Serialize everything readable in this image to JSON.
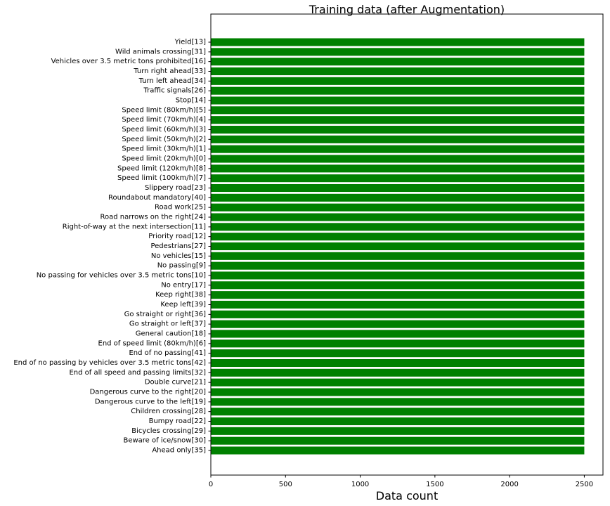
{
  "chart_data": {
    "type": "bar",
    "orientation": "horizontal",
    "title": "Training data (after Augmentation)",
    "xlabel": "Data count",
    "ylabel": "",
    "xlim": [
      0,
      2625
    ],
    "xticks": [
      0,
      500,
      1000,
      1500,
      2000,
      2500
    ],
    "grid": false,
    "legend": "none",
    "bar_color": "#008000",
    "categories": [
      "Ahead only[35]",
      "Beware of ice/snow[30]",
      "Bicycles crossing[29]",
      "Bumpy road[22]",
      "Children crossing[28]",
      "Dangerous curve to the left[19]",
      "Dangerous curve to the right[20]",
      "Double curve[21]",
      "End of all speed and passing limits[32]",
      "End of no passing by vehicles over 3.5 metric tons[42]",
      "End of no passing[41]",
      "End of speed limit (80km/h)[6]",
      "General caution[18]",
      "Go straight or left[37]",
      "Go straight or right[36]",
      "Keep left[39]",
      "Keep right[38]",
      "No entry[17]",
      "No passing for vehicles over 3.5 metric tons[10]",
      "No passing[9]",
      "No vehicles[15]",
      "Pedestrians[27]",
      "Priority road[12]",
      "Right-of-way at the next intersection[11]",
      "Road narrows on the right[24]",
      "Road work[25]",
      "Roundabout mandatory[40]",
      "Slippery road[23]",
      "Speed limit (100km/h)[7]",
      "Speed limit (120km/h)[8]",
      "Speed limit (20km/h)[0]",
      "Speed limit (30km/h)[1]",
      "Speed limit (50km/h)[2]",
      "Speed limit (60km/h)[3]",
      "Speed limit (70km/h)[4]",
      "Speed limit (80km/h)[5]",
      "Stop[14]",
      "Traffic signals[26]",
      "Turn left ahead[34]",
      "Turn right ahead[33]",
      "Vehicles over 3.5 metric tons prohibited[16]",
      "Wild animals crossing[31]",
      "Yield[13]"
    ],
    "values": [
      2500,
      2500,
      2500,
      2500,
      2500,
      2500,
      2500,
      2500,
      2500,
      2500,
      2500,
      2500,
      2500,
      2500,
      2500,
      2500,
      2500,
      2500,
      2500,
      2500,
      2500,
      2500,
      2500,
      2500,
      2500,
      2500,
      2500,
      2500,
      2500,
      2500,
      2500,
      2500,
      2500,
      2500,
      2500,
      2500,
      2500,
      2500,
      2500,
      2500,
      2500,
      2500,
      2500
    ]
  }
}
